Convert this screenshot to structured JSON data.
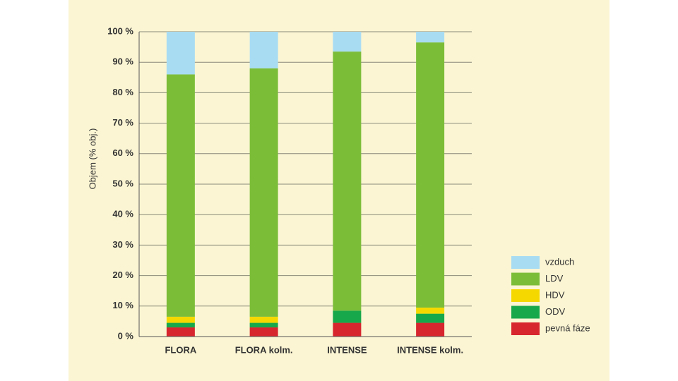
{
  "chart_data": {
    "type": "stacked-bar",
    "ylabel": "Objem (% obj.)",
    "categories": [
      "FLORA",
      "FLORA kolm.",
      "INTENSE",
      "INTENSE kolm."
    ],
    "series": [
      {
        "name": "pevná fáze",
        "color": "#d7262e",
        "values": [
          3,
          3,
          4.5,
          4.5
        ]
      },
      {
        "name": "ODV",
        "color": "#17a84b",
        "values": [
          1.5,
          1.5,
          4,
          3
        ]
      },
      {
        "name": "HDV",
        "color": "#f5d800",
        "values": [
          2,
          2,
          0,
          2
        ]
      },
      {
        "name": "LDV",
        "color": "#7cbd38",
        "values": [
          79.5,
          81.5,
          85,
          87
        ]
      },
      {
        "name": "vzduch",
        "color": "#a8dcf3",
        "values": [
          14,
          12,
          6.5,
          3.5
        ]
      }
    ],
    "ylim": [
      0,
      100
    ],
    "yticks": [
      {
        "value": 0,
        "label": "0 %"
      },
      {
        "value": 10,
        "label": "10 %"
      },
      {
        "value": 20,
        "label": "20 %"
      },
      {
        "value": 30,
        "label": "30 %"
      },
      {
        "value": 40,
        "label": "40 %"
      },
      {
        "value": 50,
        "label": "50 %"
      },
      {
        "value": 60,
        "label": "60 %"
      },
      {
        "value": 70,
        "label": "70 %"
      },
      {
        "value": 80,
        "label": "80 %"
      },
      {
        "value": 90,
        "label": "90 %"
      },
      {
        "value": 100,
        "label": "100 %"
      }
    ],
    "grid": true
  }
}
